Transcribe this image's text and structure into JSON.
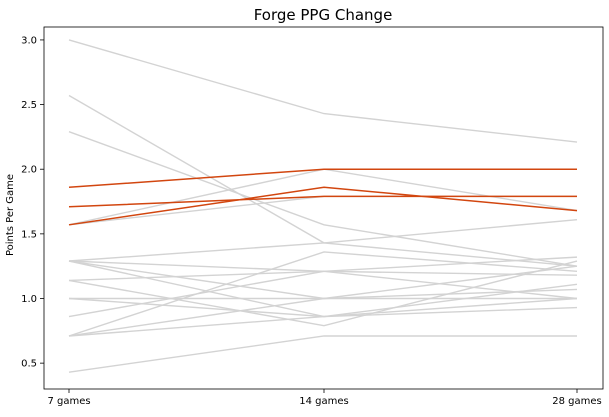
{
  "chart_data": {
    "type": "line",
    "title": "Forge PPG Change",
    "xlabel": "",
    "ylabel": "Points Per Game",
    "categories": [
      "7 games",
      "14 games",
      "28 games"
    ],
    "ylim": [
      0.3,
      3.1
    ],
    "yticks": [
      "0.5",
      "1.0",
      "1.5",
      "2.0",
      "2.5",
      "3.0"
    ],
    "grid": false,
    "colors": {
      "highlight": "#d2460f",
      "other": "#d3d3d3"
    },
    "series": [
      {
        "values": [
          3.0,
          2.43,
          2.21
        ],
        "highlight": false
      },
      {
        "values": [
          2.57,
          1.43,
          1.25
        ],
        "highlight": false
      },
      {
        "values": [
          2.29,
          1.57,
          1.25
        ],
        "highlight": false
      },
      {
        "values": [
          1.57,
          2.0,
          1.68
        ],
        "highlight": false
      },
      {
        "values": [
          1.29,
          1.43,
          1.61
        ],
        "highlight": false
      },
      {
        "values": [
          1.29,
          1.21,
          1.18
        ],
        "highlight": false
      },
      {
        "values": [
          1.29,
          1.0,
          1.0
        ],
        "highlight": false
      },
      {
        "values": [
          1.29,
          0.86,
          1.11
        ],
        "highlight": false
      },
      {
        "values": [
          1.14,
          1.21,
          1.32
        ],
        "highlight": false
      },
      {
        "values": [
          1.14,
          0.79,
          1.29
        ],
        "highlight": false
      },
      {
        "values": [
          1.0,
          1.0,
          1.07
        ],
        "highlight": false
      },
      {
        "values": [
          1.0,
          0.86,
          1.0
        ],
        "highlight": false
      },
      {
        "values": [
          0.86,
          1.21,
          1.0
        ],
        "highlight": false
      },
      {
        "values": [
          0.71,
          1.36,
          1.21
        ],
        "highlight": false
      },
      {
        "values": [
          0.71,
          1.0,
          1.25
        ],
        "highlight": false
      },
      {
        "values": [
          0.71,
          0.86,
          0.93
        ],
        "highlight": false
      },
      {
        "values": [
          0.43,
          0.71,
          0.71
        ],
        "highlight": false
      },
      {
        "values": [
          1.57,
          1.79,
          1.79
        ],
        "highlight": false
      },
      {
        "values": [
          1.86,
          2.0,
          2.0
        ],
        "highlight": true
      },
      {
        "values": [
          1.71,
          1.79,
          1.79
        ],
        "highlight": true
      },
      {
        "values": [
          1.57,
          1.86,
          1.68
        ],
        "highlight": true
      }
    ]
  }
}
